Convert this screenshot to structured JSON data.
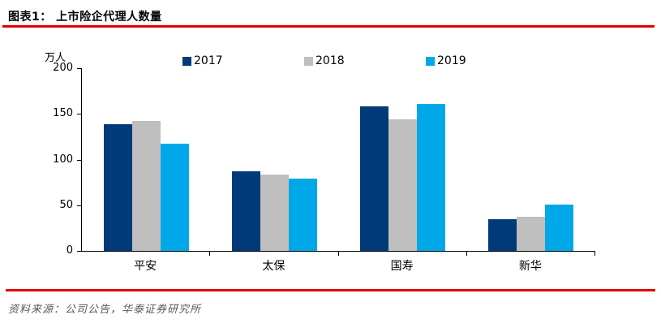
{
  "header": {
    "title": "图表1： 上市险企代理人数量"
  },
  "footer": {
    "source": "资料来源：公司公告，华泰证券研究所"
  },
  "colors": {
    "accent_red": "#E00000",
    "axis": "#000000",
    "source_text": "#595959"
  },
  "chart_data": {
    "type": "bar",
    "title": "上市险企代理人数量",
    "unit_label": "万人",
    "categories": [
      "平安",
      "太保",
      "国寿",
      "新华"
    ],
    "series": [
      {
        "name": "2017",
        "color": "#003A78",
        "values": [
          139,
          87,
          158,
          35
        ]
      },
      {
        "name": "2018",
        "color": "#BFBFBF",
        "values": [
          142,
          84,
          144,
          37
        ]
      },
      {
        "name": "2019",
        "color": "#00A8E8",
        "values": [
          117,
          79,
          161,
          51
        ]
      }
    ],
    "ylim": [
      0,
      200
    ],
    "yticks": [
      0,
      50,
      100,
      150,
      200
    ],
    "grid": false,
    "legend_position": "top"
  }
}
